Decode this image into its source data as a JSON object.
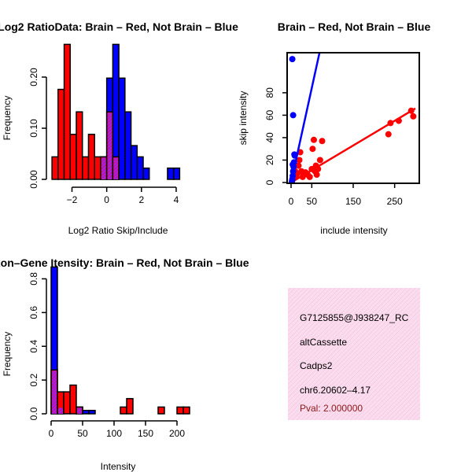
{
  "colors": {
    "red": "#ff0000",
    "blue": "#0000ff",
    "overlap": "#a020f0",
    "info_bg": "#fadcee",
    "pval": "#8b1a1a"
  },
  "chart_data": [
    {
      "type": "histogram",
      "title": "Log2 RatioData: Brain – Red, Not Brain – Blue",
      "xlabel": "Log2 Ratio Skip/Include",
      "ylabel": "Frequency",
      "xlim": [
        -3.2,
        4.5
      ],
      "ylim": [
        0,
        0.26
      ],
      "xticks": [
        -2,
        0,
        2,
        4
      ],
      "yticks": [
        0.0,
        0.1,
        0.2
      ],
      "ytick_labels": [
        "0.00",
        "0.10",
        "0.20"
      ],
      "bin_width": 0.35,
      "series": [
        {
          "name": "Brain",
          "color": "red",
          "bin_starts": [
            -3.15,
            -2.8,
            -2.45,
            -2.1,
            -1.75,
            -1.4,
            -1.05,
            -0.7,
            -0.35,
            0.0,
            0.35
          ],
          "values": [
            0.044,
            0.176,
            0.264,
            0.088,
            0.132,
            0.044,
            0.088,
            0.044,
            0.044,
            0.132,
            0.044
          ]
        },
        {
          "name": "Not Brain",
          "color": "blue",
          "bin_starts": [
            -0.35,
            0.0,
            0.35,
            0.7,
            1.05,
            1.4,
            1.75,
            2.1,
            3.5,
            3.85
          ],
          "values": [
            0.044,
            0.198,
            0.264,
            0.198,
            0.132,
            0.066,
            0.044,
            0.022,
            0.022,
            0.022
          ]
        }
      ]
    },
    {
      "type": "scatter",
      "title": "Brain – Red, Not Brain – Blue",
      "xlabel": "include intensity",
      "ylabel": "skip intensity",
      "xlim": [
        0,
        300
      ],
      "ylim": [
        0,
        115
      ],
      "xticks": [
        0,
        50,
        150,
        250
      ],
      "yticks": [
        0,
        20,
        40,
        60,
        80
      ],
      "series": [
        {
          "name": "Brain",
          "color": "red",
          "x": [
            5,
            8,
            10,
            12,
            15,
            18,
            20,
            22,
            25,
            28,
            30,
            35,
            40,
            45,
            50,
            52,
            55,
            58,
            60,
            62,
            65,
            70,
            75,
            235,
            240,
            260,
            290,
            295
          ],
          "y": [
            3,
            6,
            10,
            5,
            8,
            15,
            20,
            27,
            10,
            5,
            8,
            9,
            7,
            5,
            12,
            30,
            38,
            10,
            15,
            7,
            12,
            20,
            37,
            43,
            53,
            55,
            64,
            59
          ],
          "fit": {
            "x0": 0,
            "y0": 0,
            "x1": 300,
            "y1": 66
          }
        },
        {
          "name": "Not Brain",
          "color": "blue",
          "x": [
            2,
            3,
            4,
            5,
            6,
            7,
            8,
            5,
            9,
            4,
            3
          ],
          "y": [
            1,
            3,
            6,
            10,
            14,
            18,
            25,
            60,
            24,
            16,
            110
          ],
          "fit": {
            "x0": 0,
            "y0": 0,
            "x1": 70,
            "y1": 118
          }
        }
      ]
    },
    {
      "type": "histogram",
      "title": "Exon–Gene Itensity: Brain – Red, Not Brain – Blue",
      "xlabel": "Intensity",
      "ylabel": "Frequency",
      "xlim": [
        -5,
        215
      ],
      "ylim": [
        0,
        0.9
      ],
      "xticks": [
        0,
        50,
        100,
        150,
        200
      ],
      "yticks": [
        0.0,
        0.2,
        0.4,
        0.6,
        0.8
      ],
      "ytick_labels": [
        "0.0",
        "0.2",
        "0.4",
        "0.6",
        "0.8"
      ],
      "bin_width": 10,
      "series": [
        {
          "name": "Brain",
          "color": "red",
          "bin_starts": [
            0,
            10,
            20,
            30,
            40,
            110,
            120,
            170,
            200,
            210
          ],
          "values": [
            0.26,
            0.13,
            0.13,
            0.17,
            0.04,
            0.04,
            0.09,
            0.04,
            0.04,
            0.04
          ]
        },
        {
          "name": "Not Brain",
          "color": "blue",
          "bin_starts": [
            0,
            10,
            40,
            50,
            60
          ],
          "values": [
            0.87,
            0.04,
            0.04,
            0.02,
            0.02
          ]
        }
      ]
    }
  ],
  "info": {
    "id": "G7125855@J938247_RC",
    "event": "altCassette",
    "gene": "Cadps2",
    "location": "chr6.20602–4.17",
    "pval": "Pval: 2.000000"
  }
}
